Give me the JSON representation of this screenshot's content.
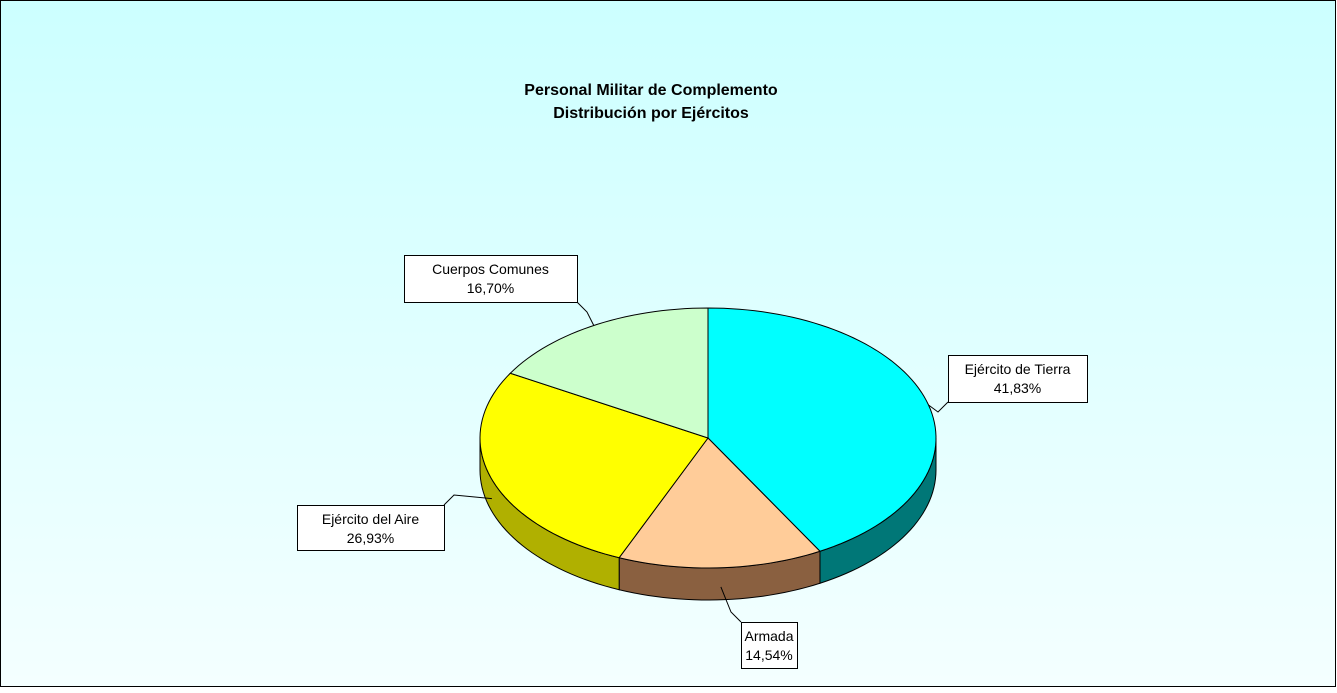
{
  "chart_data": {
    "type": "pie3d",
    "title": "Personal Militar de Complemento",
    "subtitle": "Distribución por Ejércitos",
    "categories": [
      "Ejército de Tierra",
      "Armada",
      "Ejército del Aire",
      "Cuerpos Comunes"
    ],
    "values": [
      41.83,
      14.54,
      26.93,
      16.7
    ],
    "value_labels": [
      "41,83%",
      "14,54%",
      "26,93%",
      "16,70%"
    ],
    "colors": [
      "#00ffff",
      "#ffcc99",
      "#ffff00",
      "#ccffcc"
    ],
    "side_colors": [
      "#007777",
      "#8a6040",
      "#b0b000",
      "#88aa88"
    ]
  }
}
